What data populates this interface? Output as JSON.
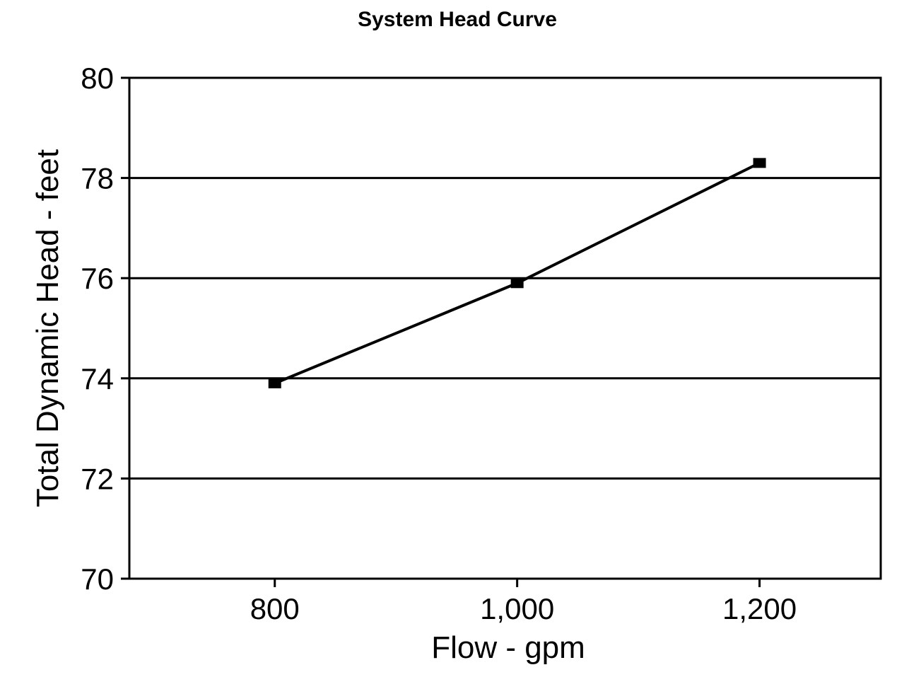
{
  "chart_data": {
    "type": "line",
    "title": "System Head Curve",
    "xlabel": "Flow - gpm",
    "ylabel": "Total Dynamic Head - feet",
    "x_ticks": [
      "800",
      "1,000",
      "1,200"
    ],
    "y_ticks": [
      "70",
      "72",
      "74",
      "76",
      "78",
      "80"
    ],
    "xlim": [
      680,
      1300
    ],
    "ylim": [
      70,
      80
    ],
    "grid": "horizontal",
    "series": [
      {
        "x": [
          800,
          1000,
          1200
        ],
        "y": [
          73.9,
          75.9,
          78.3
        ]
      }
    ],
    "line_color": "#000000"
  }
}
